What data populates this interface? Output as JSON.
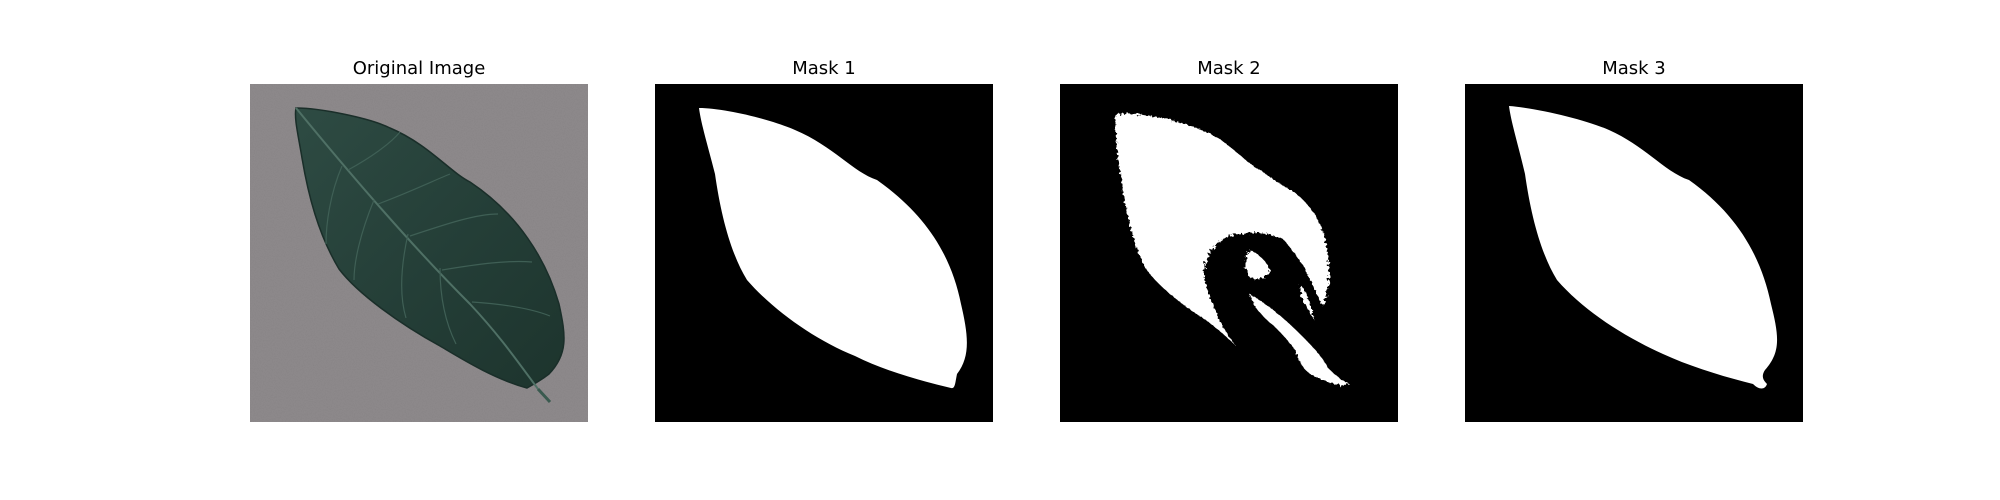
{
  "figure": {
    "panels": [
      {
        "title": "Original Image",
        "kind": "photo"
      },
      {
        "title": "Mask 1",
        "kind": "mask"
      },
      {
        "title": "Mask 2",
        "kind": "mask"
      },
      {
        "title": "Mask 3",
        "kind": "mask"
      }
    ],
    "colors": {
      "background": "#ffffff",
      "mask_background": "#000000",
      "mask_foreground": "#ffffff",
      "photo_background": "#8f8b8d",
      "leaf_dark": "#213a33",
      "leaf_mid": "#2d4b42",
      "leaf_vein": "#496a5f"
    }
  }
}
